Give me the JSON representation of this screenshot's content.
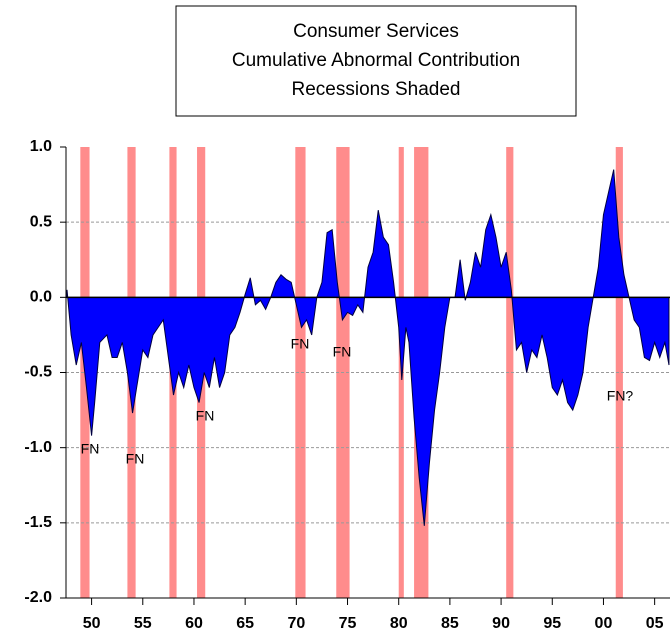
{
  "chart_data": {
    "type": "area",
    "title": "Consumer Services",
    "subtitle": [
      "Cumulative Abnormal Contribution",
      "Recessions Shaded"
    ],
    "color": "#0000ff",
    "line_color": "#000040",
    "shade_color": "#ff8c8c",
    "grid": true,
    "x": [
      1947.6,
      1948,
      1948.5,
      1949,
      1949.5,
      1950,
      1950.3,
      1950.8,
      1951.5,
      1952,
      1952.5,
      1953,
      1953.5,
      1954,
      1954.4,
      1955,
      1955.5,
      1956,
      1956.5,
      1957,
      1957.5,
      1958,
      1958.5,
      1959,
      1959.5,
      1960,
      1960.5,
      1961,
      1961.5,
      1962,
      1962.5,
      1963,
      1963.5,
      1964,
      1964.5,
      1965,
      1965.5,
      1966,
      1966.5,
      1967,
      1967.5,
      1968,
      1968.5,
      1969,
      1969.5,
      1970,
      1970.5,
      1971,
      1971.5,
      1972,
      1972.5,
      1973,
      1973.5,
      1974,
      1974.5,
      1975,
      1975.5,
      1976,
      1976.5,
      1977,
      1977.5,
      1978,
      1978.5,
      1979,
      1979.5,
      1980,
      1980.3,
      1980.7,
      1981,
      1981.5,
      1982,
      1982.5,
      1983,
      1983.5,
      1984,
      1984.5,
      1985,
      1985.5,
      1986,
      1986.5,
      1987,
      1987.5,
      1988,
      1988.5,
      1989,
      1989.5,
      1990,
      1990.5,
      1991,
      1991.5,
      1992,
      1992.5,
      1993,
      1993.5,
      1994,
      1994.5,
      1995,
      1995.5,
      1996,
      1996.5,
      1997,
      1997.5,
      1998,
      1998.5,
      1999,
      1999.5,
      2000,
      2000.5,
      2001,
      2001.5,
      2002,
      2002.5,
      2003,
      2003.5,
      2004,
      2004.5,
      2005,
      2005.5,
      2006,
      2006.4
    ],
    "values": [
      0.05,
      -0.25,
      -0.45,
      -0.3,
      -0.6,
      -0.92,
      -0.7,
      -0.3,
      -0.25,
      -0.4,
      -0.4,
      -0.3,
      -0.5,
      -0.77,
      -0.6,
      -0.35,
      -0.4,
      -0.25,
      -0.2,
      -0.15,
      -0.4,
      -0.65,
      -0.5,
      -0.6,
      -0.45,
      -0.6,
      -0.7,
      -0.5,
      -0.6,
      -0.4,
      -0.6,
      -0.5,
      -0.25,
      -0.2,
      -0.1,
      0.02,
      0.13,
      -0.05,
      -0.02,
      -0.08,
      0.0,
      0.1,
      0.15,
      0.12,
      0.1,
      -0.05,
      -0.2,
      -0.15,
      -0.25,
      0.0,
      0.1,
      0.43,
      0.45,
      0.1,
      -0.15,
      -0.1,
      -0.12,
      -0.05,
      -0.1,
      0.2,
      0.3,
      0.58,
      0.4,
      0.35,
      0.1,
      -0.2,
      -0.55,
      -0.2,
      -0.3,
      -0.8,
      -1.2,
      -1.52,
      -1.1,
      -0.75,
      -0.5,
      -0.2,
      0.0,
      0.0,
      0.25,
      -0.02,
      0.1,
      0.3,
      0.2,
      0.45,
      0.55,
      0.4,
      0.2,
      0.3,
      0.05,
      -0.35,
      -0.3,
      -0.5,
      -0.35,
      -0.4,
      -0.25,
      -0.4,
      -0.6,
      -0.65,
      -0.55,
      -0.7,
      -0.75,
      -0.65,
      -0.5,
      -0.2,
      0.0,
      0.2,
      0.55,
      0.7,
      0.85,
      0.4,
      0.15,
      0.0,
      -0.15,
      -0.2,
      -0.4,
      -0.42,
      -0.3,
      -0.4,
      -0.3,
      -0.45
    ],
    "shaded_regions": [
      [
        1948.9,
        1949.8
      ],
      [
        1953.5,
        1954.3
      ],
      [
        1957.6,
        1958.3
      ],
      [
        1960.3,
        1961.1
      ],
      [
        1969.9,
        1970.9
      ],
      [
        1973.9,
        1975.2
      ],
      [
        1980.0,
        1980.5
      ],
      [
        1981.5,
        1982.9
      ],
      [
        1990.5,
        1991.2
      ],
      [
        2001.2,
        2001.9
      ]
    ],
    "annotations": [
      "FN",
      "FN",
      "FN",
      "FN",
      "FN",
      "FN?"
    ],
    "xlim": [
      1947.5,
      2006.5
    ],
    "xticks": [
      {
        "value": 1950,
        "label": "50"
      },
      {
        "value": 1955,
        "label": "55"
      },
      {
        "value": 1960,
        "label": "60"
      },
      {
        "value": 1965,
        "label": "65"
      },
      {
        "value": 1970,
        "label": "70"
      },
      {
        "value": 1975,
        "label": "75"
      },
      {
        "value": 1980,
        "label": "80"
      },
      {
        "value": 1985,
        "label": "85"
      },
      {
        "value": 1990,
        "label": "90"
      },
      {
        "value": 1995,
        "label": "95"
      },
      {
        "value": 2000,
        "label": "00"
      },
      {
        "value": 2005,
        "label": "05"
      }
    ],
    "ylim": [
      -2,
      1
    ],
    "yticks": [
      {
        "value": -2,
        "label": "-2.0"
      },
      {
        "value": -1.5,
        "label": "-1.5"
      },
      {
        "value": -1,
        "label": "-1.0"
      },
      {
        "value": -0.5,
        "label": "-0.5"
      },
      {
        "value": 0,
        "label": "0.0"
      },
      {
        "value": 0.5,
        "label": "0.5"
      },
      {
        "value": 1,
        "label": "1.0"
      }
    ]
  }
}
